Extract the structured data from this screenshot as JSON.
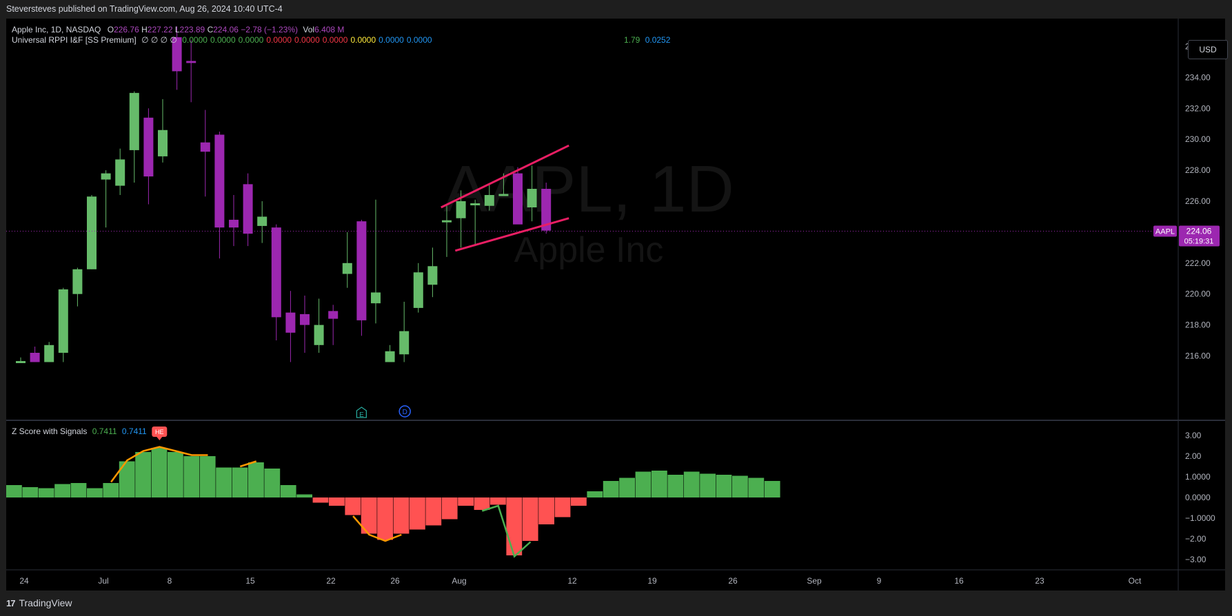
{
  "header": {
    "published_text": "Steversteves published on TradingView.com, Aug 26, 2024 10:40 UTC-4"
  },
  "currency_button": "USD",
  "watermark": {
    "symbol": "AAPL, 1D",
    "name": "Apple Inc"
  },
  "legend": {
    "symbol_desc": "Apple Inc, 1D, NASDAQ",
    "o_label": "O",
    "o_value": "226.76",
    "h_label": "H",
    "h_value": "227.22",
    "l_label": "L",
    "l_value": "223.89",
    "c_label": "C",
    "c_value": "224.06",
    "change": "−2.78 (−1.23%)",
    "vol_label": "Vol",
    "vol_value": "6.408 M",
    "indicator_name": "Universal RPPI I&F [SS Premium]",
    "indicator_null": "∅ ∅ ∅ ∅",
    "indicator_values": [
      {
        "v": "0.0000",
        "color": "#4caf50"
      },
      {
        "v": "0.0000",
        "color": "#4caf50"
      },
      {
        "v": "0.0000",
        "color": "#4caf50"
      },
      {
        "v": "0.0000",
        "color": "#f23645"
      },
      {
        "v": "0.0000",
        "color": "#f23645"
      },
      {
        "v": "0.0000",
        "color": "#f23645"
      },
      {
        "v": "0.0000",
        "color": "#ffeb3b"
      },
      {
        "v": "0.0000",
        "color": "#2196f3"
      },
      {
        "v": "0.0000",
        "color": "#2196f3"
      }
    ],
    "extra_1": "1.79",
    "extra_2": "0.0252",
    "zscore_name": "Z Score with Signals",
    "zscore_v1": "0.7411",
    "zscore_v2": "0.7411"
  },
  "price_tag": {
    "symbol": "AAPL",
    "price": "224.06",
    "countdown": "05:19:31"
  },
  "footer": {
    "brand": "TradingView"
  },
  "colors": {
    "up": "#66bb6a",
    "down": "#9c27b0",
    "channel": "#e91e63",
    "z_pos": "#4caf50",
    "z_neg": "#ff5252",
    "z_line": "#ff9800"
  },
  "chart_data": [
    {
      "type": "candlestick",
      "title": "Apple Inc, 1D, NASDAQ",
      "y_ticks": [
        "216.00",
        "218.00",
        "220.00",
        "222.00",
        "224.00",
        "226.00",
        "228.00",
        "230.00",
        "232.00",
        "234.00",
        "236.00"
      ],
      "x_ticks": [
        "24",
        "Jul",
        "8",
        "15",
        "22",
        "26",
        "Aug",
        "12",
        "19",
        "26",
        "Sep",
        "9",
        "16",
        "23",
        "Oct"
      ],
      "ylim": [
        215.6,
        236.9
      ],
      "current_price": 224.06,
      "candles": [
        {
          "o": 215.6,
          "h": 215.9,
          "l": 215.6,
          "c": 215.6
        },
        {
          "o": 216.2,
          "h": 216.6,
          "l": 215.6,
          "c": 215.6
        },
        {
          "o": 215.6,
          "h": 216.9,
          "l": 215.6,
          "c": 216.7
        },
        {
          "o": 216.2,
          "h": 220.4,
          "l": 215.6,
          "c": 220.3
        },
        {
          "o": 220.0,
          "h": 221.7,
          "l": 219.2,
          "c": 221.6
        },
        {
          "o": 221.6,
          "h": 226.4,
          "l": 221.6,
          "c": 226.3
        },
        {
          "o": 227.4,
          "h": 228.0,
          "l": 224.3,
          "c": 227.8
        },
        {
          "o": 227.0,
          "h": 229.4,
          "l": 226.4,
          "c": 228.7
        },
        {
          "o": 229.3,
          "h": 233.1,
          "l": 227.2,
          "c": 233.0
        },
        {
          "o": 231.4,
          "h": 232.0,
          "l": 225.8,
          "c": 227.6
        },
        {
          "o": 228.9,
          "h": 232.6,
          "l": 228.5,
          "c": 230.6
        },
        {
          "o": 236.6,
          "h": 237.3,
          "l": 233.2,
          "c": 234.4
        },
        {
          "o": 235.0,
          "h": 236.4,
          "l": 232.4,
          "c": 234.9
        },
        {
          "o": 229.8,
          "h": 231.9,
          "l": 226.3,
          "c": 229.2
        },
        {
          "o": 230.3,
          "h": 230.5,
          "l": 222.3,
          "c": 224.3
        },
        {
          "o": 224.8,
          "h": 226.4,
          "l": 223.1,
          "c": 224.3
        },
        {
          "o": 227.1,
          "h": 227.8,
          "l": 223.1,
          "c": 223.9
        },
        {
          "o": 224.4,
          "h": 226.0,
          "l": 223.3,
          "c": 225.0
        },
        {
          "o": 224.3,
          "h": 224.5,
          "l": 217.0,
          "c": 218.5
        },
        {
          "o": 218.8,
          "h": 220.2,
          "l": 215.6,
          "c": 217.5
        },
        {
          "o": 218.7,
          "h": 219.9,
          "l": 216.2,
          "c": 218.0
        },
        {
          "o": 216.7,
          "h": 219.7,
          "l": 216.2,
          "c": 218.0
        },
        {
          "o": 218.9,
          "h": 219.3,
          "l": 216.7,
          "c": 218.4
        },
        {
          "o": 221.3,
          "h": 224.0,
          "l": 220.4,
          "c": 222.0
        },
        {
          "o": 224.7,
          "h": 224.8,
          "l": 217.3,
          "c": 218.3
        },
        {
          "o": 219.4,
          "h": 226.1,
          "l": 218.1,
          "c": 220.1
        },
        {
          "o": 215.6,
          "h": 216.7,
          "l": 215.6,
          "c": 216.3
        },
        {
          "o": 216.1,
          "h": 219.5,
          "l": 215.6,
          "c": 217.6
        },
        {
          "o": 219.1,
          "h": 222.0,
          "l": 218.8,
          "c": 221.4
        },
        {
          "o": 220.6,
          "h": 223.0,
          "l": 219.8,
          "c": 221.8
        },
        {
          "o": 224.6,
          "h": 225.7,
          "l": 222.4,
          "c": 224.7
        },
        {
          "o": 224.9,
          "h": 226.7,
          "l": 223.0,
          "c": 226.0
        },
        {
          "o": 225.8,
          "h": 226.1,
          "l": 223.1,
          "c": 225.8
        },
        {
          "o": 225.7,
          "h": 227.1,
          "l": 225.4,
          "c": 226.4
        },
        {
          "o": 226.4,
          "h": 227.8,
          "l": 226.4,
          "c": 226.4
        },
        {
          "o": 227.8,
          "h": 228.2,
          "l": 224.7,
          "c": 224.5
        },
        {
          "o": 225.6,
          "h": 228.3,
          "l": 224.7,
          "c": 226.8
        },
        {
          "o": 226.8,
          "h": 227.2,
          "l": 223.9,
          "c": 224.1
        }
      ]
    },
    {
      "type": "bar",
      "title": "Z Score with Signals",
      "y_ticks": [
        "3.00",
        "2.00",
        "1.0000",
        "0.0000",
        "−1.0000",
        "−2.00",
        "−3.00"
      ],
      "ylim": [
        -3.4,
        3.4
      ],
      "values": [
        0.6,
        0.5,
        0.45,
        0.65,
        0.7,
        0.45,
        0.7,
        1.75,
        2.2,
        2.4,
        2.2,
        2.0,
        2.0,
        1.45,
        1.45,
        1.7,
        1.4,
        0.6,
        0.15,
        -0.25,
        -0.4,
        -0.85,
        -1.75,
        -2.05,
        -1.75,
        -1.55,
        -1.35,
        -1.05,
        -0.4,
        -0.6,
        -0.35,
        -2.8,
        -2.1,
        -1.3,
        -0.95,
        -0.4,
        0.3,
        0.8,
        0.95,
        1.25,
        1.3,
        1.1,
        1.25,
        1.15,
        1.1,
        1.05,
        0.95,
        0.8
      ],
      "signal_label": "HE"
    }
  ]
}
